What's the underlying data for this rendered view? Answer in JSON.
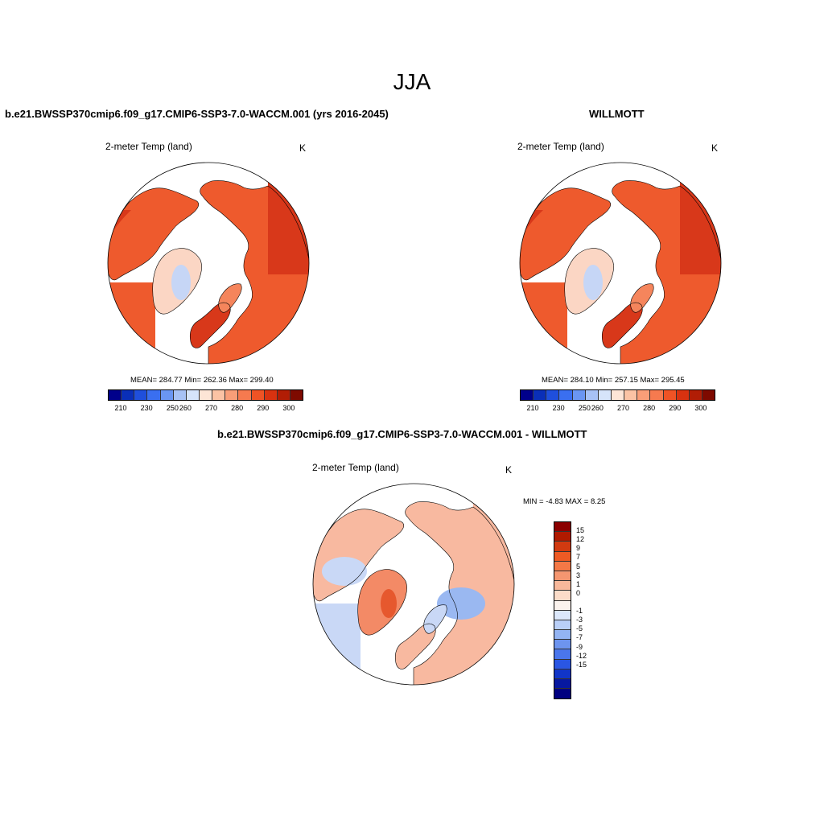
{
  "season": "JJA",
  "panels": [
    {
      "title": "b.e21.BWSSP370cmip6.f09_g17.CMIP6-SSP3-7.0-WACCM.001 (yrs 2016-2045)",
      "variable": "2-meter Temp (land)",
      "unit": "K",
      "mean": "284.77",
      "min": "262.36",
      "max": "299.40",
      "stats_text": "MEAN= 284.77  Min= 262.36  Max= 299.40"
    },
    {
      "title": "WILLMOTT",
      "variable": "2-meter Temp (land)",
      "unit": "K",
      "mean": "284.10",
      "min": "257.15",
      "max": "295.45",
      "stats_text": "MEAN= 284.10  Min= 257.15  Max= 295.45"
    },
    {
      "title": "b.e21.BWSSP370cmip6.f09_g17.CMIP6-SSP3-7.0-WACCM.001 - WILLMOTT",
      "variable": "2-meter Temp (land)",
      "unit": "K",
      "min": "-4.83",
      "max": "8.25",
      "minmax_text": "MIN =  -4.83 MAX =   8.25"
    }
  ],
  "abs_colorbar": {
    "colors": [
      "#00008b",
      "#0a2fb8",
      "#1f4fdc",
      "#3a6ff0",
      "#6a96f2",
      "#a7c2f5",
      "#d6e4fa",
      "#fde5d6",
      "#fbc3a4",
      "#f99e78",
      "#f67a4f",
      "#ef5325",
      "#d83210",
      "#b11d05",
      "#7e0a00"
    ],
    "tick_labels": [
      "210",
      "230",
      "250",
      "260",
      "270",
      "280",
      "290",
      "300"
    ]
  },
  "diff_colorbar": {
    "colors": [
      "#8b0000",
      "#b01a00",
      "#d23a10",
      "#ee5a24",
      "#f47846",
      "#f59670",
      "#f7b89b",
      "#fbdcc9",
      "#fbf3ee",
      "#dce8fb",
      "#b9cff7",
      "#93b4f3",
      "#6d94ef",
      "#4a76ec",
      "#2a56e3",
      "#1135c8",
      "#0718a0",
      "#000080"
    ],
    "tick_labels": [
      "15",
      "12",
      "9",
      "7",
      "5",
      "3",
      "1",
      "0",
      "-1",
      "-3",
      "-5",
      "-7",
      "-9",
      "-12",
      "-15"
    ]
  },
  "map_colors": {
    "warm_deep": "#d8381a",
    "warm_main": "#ee5a2d",
    "warm_light": "#f5855c",
    "greenland_pale": "#fbd6c4",
    "greenland_blue": "#c6d6f6",
    "diff_pale_red": "#f8b9a0",
    "diff_mid_red": "#f38a66",
    "diff_strong_red": "#e6582e",
    "diff_pale_blue": "#c9d8f6",
    "diff_mid_blue": "#9ab8f1"
  }
}
